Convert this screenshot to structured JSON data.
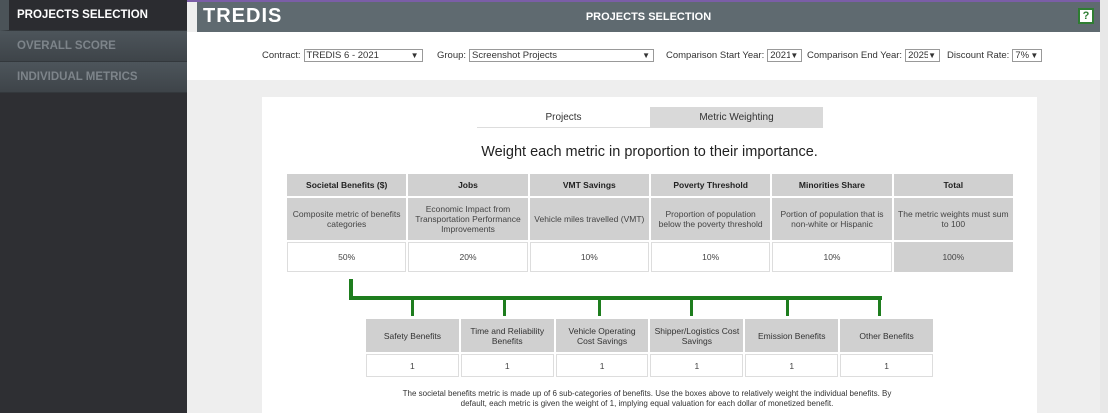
{
  "sidebar": {
    "items": [
      {
        "label": "PROJECTS SELECTION"
      },
      {
        "label": "OVERALL SCORE"
      },
      {
        "label": "INDIVIDUAL METRICS"
      }
    ]
  },
  "header": {
    "logo": "TREDIS",
    "title": "PROJECTS SELECTION",
    "help": "?"
  },
  "filters": {
    "contract": {
      "label": "Contract:",
      "value": "TREDIS 6 - 2021"
    },
    "group": {
      "label": "Group:",
      "value": "Screenshot Projects"
    },
    "start": {
      "label": "Comparison Start Year:",
      "value": "2021"
    },
    "end": {
      "label": "Comparison End Year:",
      "value": "2025"
    },
    "rate": {
      "label": "Discount Rate:",
      "value": "7%"
    }
  },
  "tabs": [
    {
      "label": "Projects"
    },
    {
      "label": "Metric Weighting",
      "active": true
    }
  ],
  "heading": "Weight each metric in proportion to their importance.",
  "metrics": [
    {
      "name": "Societal Benefits ($)",
      "desc": "Composite metric of benefits categories",
      "value": "50%"
    },
    {
      "name": "Jobs",
      "desc": "Economic Impact from Transportation Performance Improvements",
      "value": "20%"
    },
    {
      "name": "VMT Savings",
      "desc": "Vehicle miles travelled (VMT)",
      "value": "10%"
    },
    {
      "name": "Poverty Threshold",
      "desc": "Proportion of population below the poverty threshold",
      "value": "10%"
    },
    {
      "name": "Minorities Share",
      "desc": "Portion of population that is non-white or Hispanic",
      "value": "10%"
    },
    {
      "name": "Total",
      "desc": "The metric weights must sum to 100",
      "value": "100%"
    }
  ],
  "sub_benefits": [
    {
      "name": "Safety Benefits",
      "value": "1"
    },
    {
      "name": "Time and Reliability Benefits",
      "value": "1"
    },
    {
      "name": "Vehicle Operating Cost Savings",
      "value": "1"
    },
    {
      "name": "Shipper/Logistics Cost Savings",
      "value": "1"
    },
    {
      "name": "Emission Benefits",
      "value": "1"
    },
    {
      "name": "Other Benefits",
      "value": "1"
    }
  ],
  "note": "The societal benefits metric is made up of 6 sub-categories of benefits. Use the boxes above to relatively weight the individual benefits. By default, each metric is given the weight of 1, implying equal valuation for each dollar of monetized benefit.",
  "colors": {
    "connector": "#1e7d1e",
    "header": "#5f6a70"
  }
}
